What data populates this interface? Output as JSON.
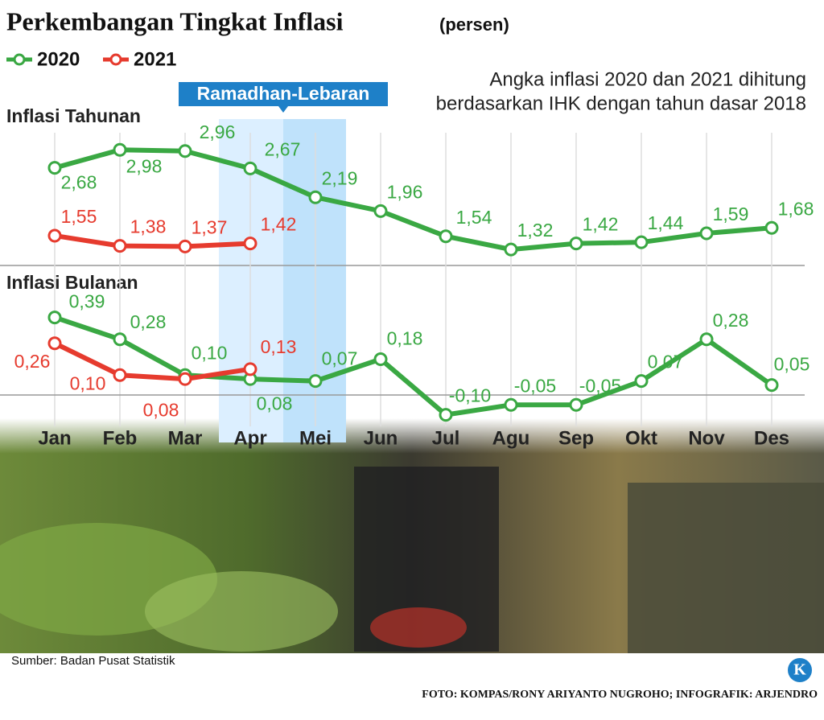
{
  "title": "Perkembangan Tingkat Inflasi",
  "subtitle": "(persen)",
  "note": [
    "Angka inflasi 2020 dan 2021 dihitung",
    "berdasarkan IHK dengan tahun dasar 2018"
  ],
  "event": "Ramadhan-Lebaran",
  "categories": [
    "Jan",
    "Feb",
    "Mar",
    "Apr",
    "Mei",
    "Jun",
    "Jul",
    "Agu",
    "Sep",
    "Okt",
    "Nov",
    "Des"
  ],
  "source": "Sumber: Badan Pusat Statistik",
  "credit": "FOTO: KOMPAS/RONY ARIYANTO NUGROHO; INFOGRAFIK: ARJENDRO",
  "chart_data": [
    {
      "type": "line",
      "title": "Inflasi Tahunan",
      "ylim": [
        1.0,
        3.6
      ],
      "series": [
        {
          "name": "2020",
          "color": "#3aa843",
          "values": [
            2.68,
            2.98,
            2.96,
            2.67,
            2.19,
            1.96,
            1.54,
            1.32,
            1.42,
            1.44,
            1.59,
            1.68
          ],
          "value_labels": [
            "2,68",
            "2,98",
            "2,96",
            "2,67",
            "2,19",
            "1,96",
            "1,54",
            "1,32",
            "1,42",
            "1,44",
            "1,59",
            "1,68"
          ]
        },
        {
          "name": "2021",
          "color": "#e63b2e",
          "values": [
            1.55,
            1.38,
            1.37,
            1.42,
            null,
            null,
            null,
            null,
            null,
            null,
            null,
            null
          ],
          "value_labels": [
            "1,55",
            "1,38",
            "1,37",
            "1,42",
            null,
            null,
            null,
            null,
            null,
            null,
            null,
            null
          ]
        }
      ]
    },
    {
      "type": "line",
      "title": "Inflasi Bulanan",
      "ylim": [
        -0.15,
        0.53
      ],
      "series": [
        {
          "name": "2020",
          "color": "#3aa843",
          "values": [
            0.39,
            0.28,
            0.1,
            0.08,
            0.07,
            0.18,
            -0.1,
            -0.05,
            -0.05,
            0.07,
            0.28,
            0.05
          ],
          "value_labels": [
            "0,39",
            "0,28",
            "0,10",
            "0,08",
            "0,07",
            "0,18",
            "-0,10",
            "-0,05",
            "-0,05",
            "0,07",
            "0,28",
            "0,05"
          ]
        },
        {
          "name": "2021",
          "color": "#e63b2e",
          "values": [
            0.26,
            0.1,
            0.08,
            0.13,
            null,
            null,
            null,
            null,
            null,
            null,
            null,
            null
          ],
          "value_labels": [
            "0,26",
            "0,10",
            "0,08",
            "0,13",
            null,
            null,
            null,
            null,
            null,
            null,
            null,
            null
          ]
        }
      ]
    }
  ]
}
